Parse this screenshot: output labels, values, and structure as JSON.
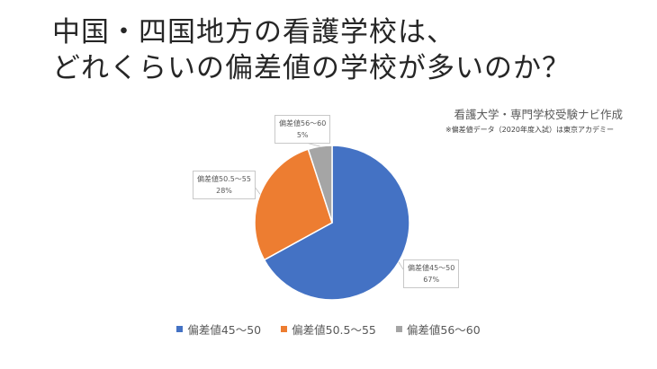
{
  "title": {
    "line1": "中国・四国地方の看護学校は、",
    "line2": "どれくらいの偏差値の学校が多いのか？"
  },
  "credit": "看護大学・専門学校受験ナビ作成",
  "source_note": "※偏差値データ（2020年度入試）は東京アカデミー",
  "chart_data": {
    "type": "pie",
    "categories": [
      "偏差値45～50",
      "偏差値50.5～55",
      "偏差値56～60"
    ],
    "values": [
      67,
      28,
      5
    ],
    "value_labels": [
      "67%",
      "28%",
      "5%"
    ],
    "colors": [
      "#4472c4",
      "#ed7d31",
      "#a5a5a5"
    ],
    "start": "12 o'clock, clockwise",
    "legend_position": "bottom"
  }
}
